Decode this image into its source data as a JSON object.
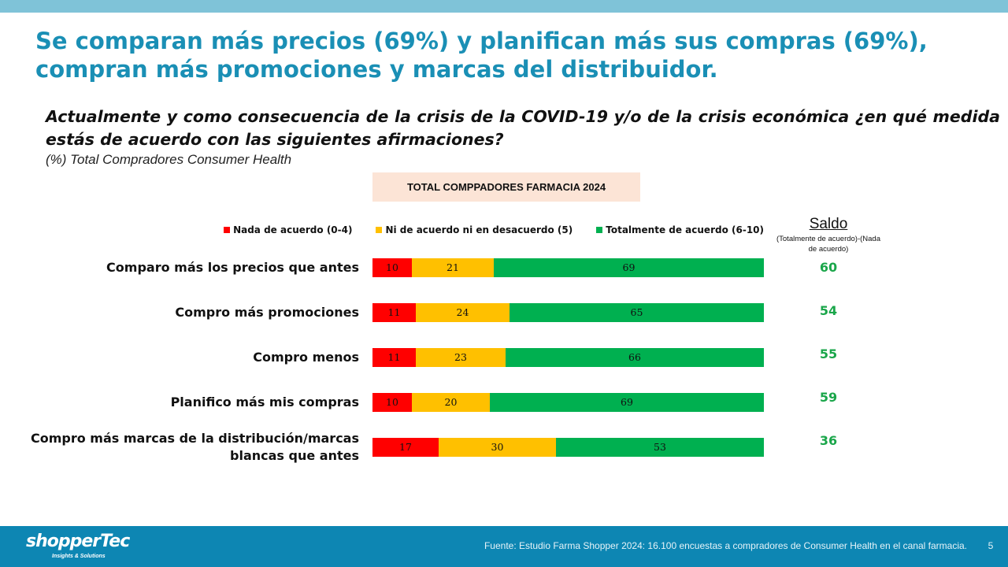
{
  "slide": {
    "title": "Se comparan más precios (69%) y planifican más sus compras (69%), compran más promociones y marcas del distribuidor.",
    "question": "Actualmente y como consecuencia de la crisis de la COVID-19 y/o de la crisis económica ¿en qué medida estás de acuerdo con las siguientes afirmaciones?",
    "base_note": "(%) Total Compradores Consumer Health",
    "segment_label": "TOTAL COMPPADORES FARMACIA 2024",
    "saldo_title": "Saldo",
    "saldo_subtitle": "(Totalmente de acuerdo)-(Nada de acuerdo)"
  },
  "chart_data": {
    "type": "bar",
    "orientation": "horizontal",
    "stacked": true,
    "xlim": [
      0,
      100
    ],
    "legend_position": "top",
    "categories": [
      "Comparo más los precios que antes",
      "Compro más promociones",
      "Compro menos",
      "Planifico más mis compras",
      "Compro más marcas de la distribución/marcas blancas que antes"
    ],
    "series": [
      {
        "name": "Nada de acuerdo (0-4)",
        "color": "#ff0000",
        "values": [
          10,
          11,
          11,
          10,
          17
        ]
      },
      {
        "name": "Ni de acuerdo ni en desacuerdo (5)",
        "color": "#ffc000",
        "values": [
          21,
          24,
          23,
          20,
          30
        ]
      },
      {
        "name": "Totalmente de acuerdo (6-10)",
        "color": "#00b050",
        "values": [
          69,
          65,
          66,
          69,
          53
        ]
      }
    ],
    "saldo": [
      60,
      54,
      55,
      59,
      36
    ],
    "saldo_color": "#1aa64a"
  },
  "footer": {
    "logo_text": "shopperTec",
    "logo_tagline": "Insights & Solutions",
    "source": "Fuente: Estudio Farma Shopper 2024: 16.100 encuestas a compradores de Consumer Health en el canal farmacia.",
    "page_number": "5"
  }
}
